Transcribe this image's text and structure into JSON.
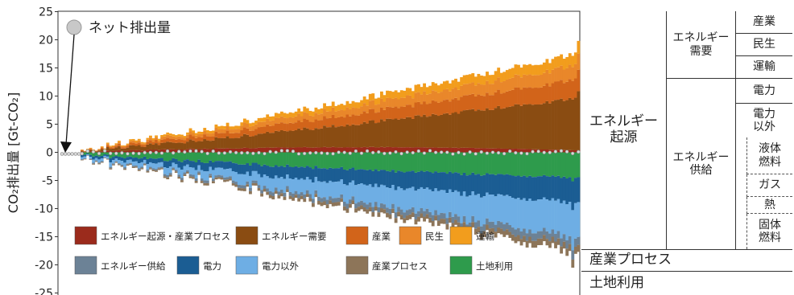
{
  "chart_data": {
    "type": "bar",
    "ylabel": "CO₂排出量 [Gt-CO₂]",
    "ylim": [
      -25,
      25
    ],
    "yticks": [
      25,
      20,
      15,
      10,
      5,
      0,
      -5,
      -10,
      -15,
      -20,
      -25
    ],
    "grid": false,
    "legend_placement": "bottom",
    "annotation": "ネット排出量",
    "series": [
      {
        "name": "エネルギー起源・産業プロセス",
        "color": "#9b2b1c"
      },
      {
        "name": "エネルギー需要",
        "color": "#8a4c12"
      },
      {
        "name": "産業",
        "color": "#d2641a"
      },
      {
        "name": "民生",
        "color": "#e9872a"
      },
      {
        "name": "運輸",
        "color": "#f29d1d"
      },
      {
        "name": "エネルギー供給",
        "color": "#6c8296"
      },
      {
        "name": "電力",
        "color": "#1b5d93"
      },
      {
        "name": "電力以外",
        "color": "#6eaee4"
      },
      {
        "name": "産業プロセス",
        "color": "#8d7559"
      },
      {
        "name": "土地利用",
        "color": "#2e9b4c"
      }
    ],
    "scenarios": {
      "count": 175,
      "positive_start": 0.5,
      "positive_end_max": 17.5,
      "positive_last": 19.8,
      "negative_start": -0.3,
      "negative_end": -17.0,
      "negative_min": -20.5,
      "net_emissions_approx": 0
    }
  },
  "table": {
    "col1": {
      "energy_origin": "エネルギー\n起源"
    },
    "col2": {
      "demand": "エネルギー\n需要",
      "supply": "エネルギー\n供給"
    },
    "col3": {
      "industry": "産業",
      "residential": "民生",
      "transport": "運輸",
      "power": "電力",
      "non_power": "電力\n以外"
    },
    "col4": {
      "liquid": "液体\n燃料",
      "gas": "ガス",
      "heat": "熱",
      "solid": "固体\n燃料"
    },
    "process": "産業プロセス",
    "land_use": "土地利用"
  }
}
